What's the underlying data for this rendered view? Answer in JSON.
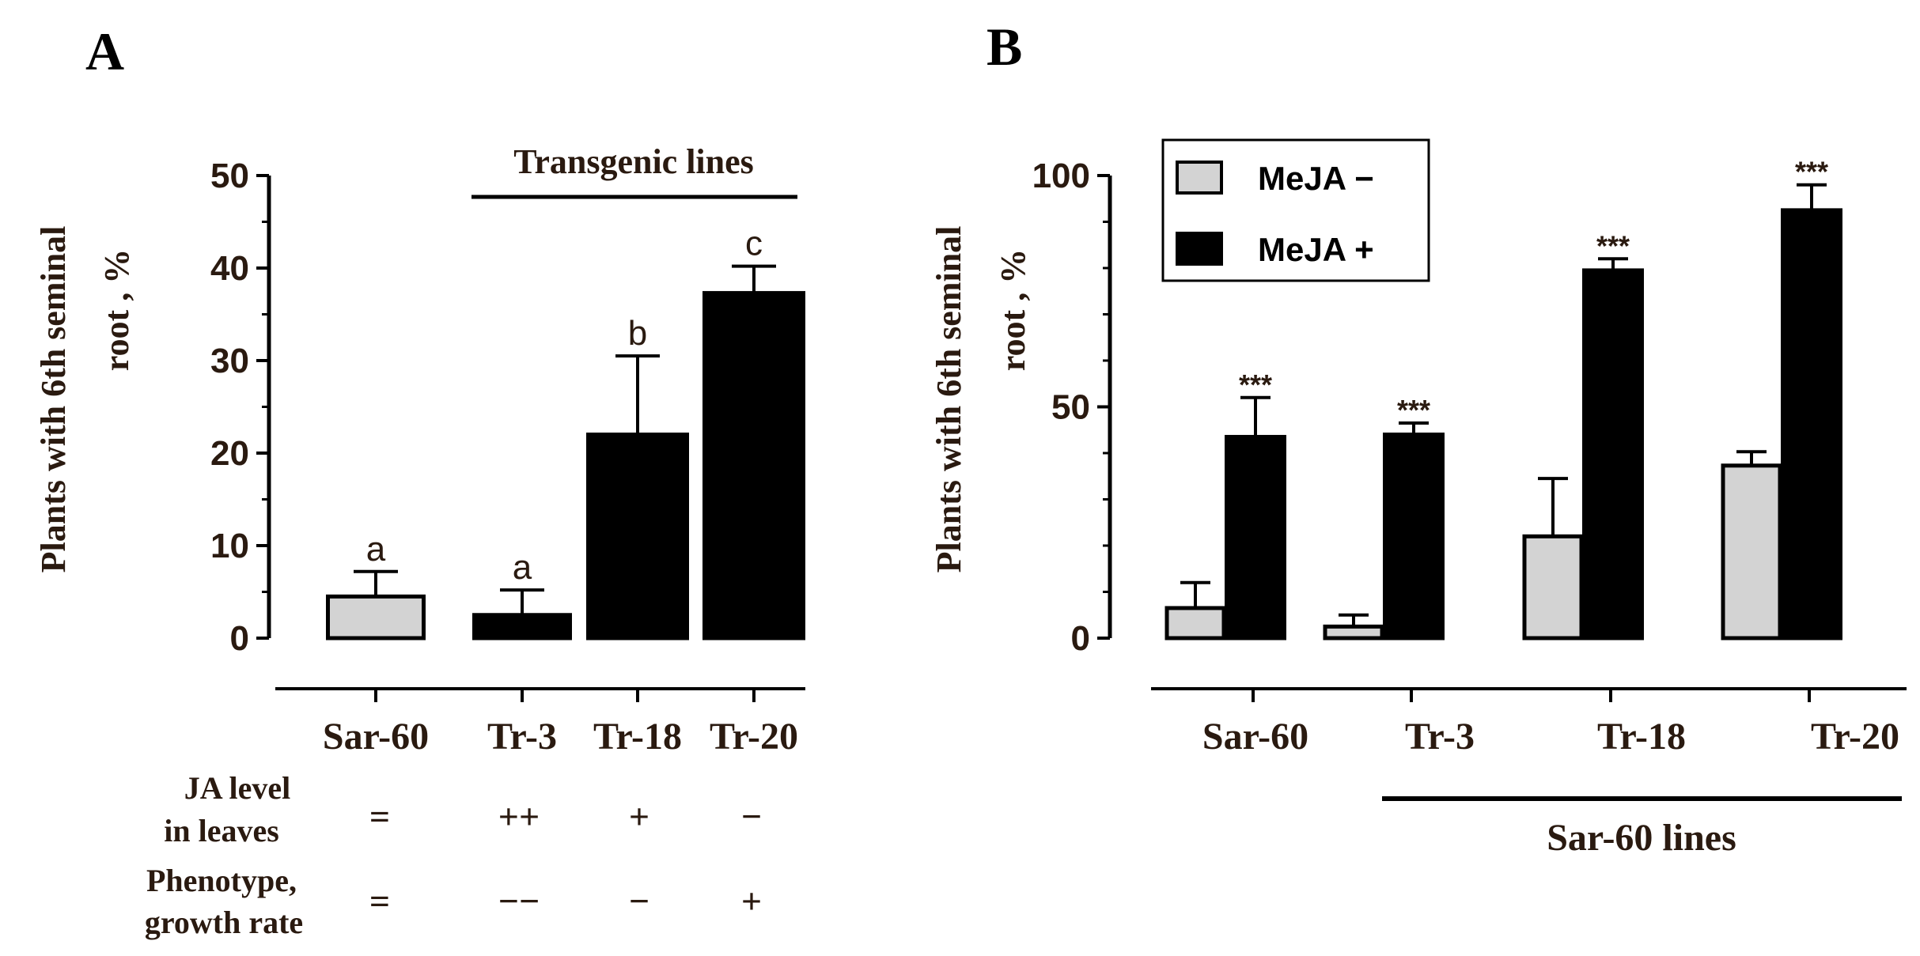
{
  "colors": {
    "light_bar": "#d3d3d3",
    "dark_bar": "#000000",
    "ink": "#000000",
    "text": "#2a1a10"
  },
  "chart_data": [
    {
      "panel_label": "A",
      "type": "bar",
      "ylabel_line1": "Plants with 6th seminal",
      "ylabel_line2": "root , %",
      "ylim": [
        0,
        50
      ],
      "yticks": [
        "0",
        "10",
        "20",
        "30",
        "40",
        "50"
      ],
      "categories": [
        "Sar-60",
        "Tr-3",
        "Tr-18",
        "Tr-20"
      ],
      "values": [
        4.5,
        2.5,
        22,
        37.3
      ],
      "errors": [
        2.7,
        2.7,
        8.5,
        2.9
      ],
      "bar_styles": [
        "light",
        "dark",
        "dark",
        "dark"
      ],
      "significance_letters": [
        "a",
        "a",
        "b",
        "c"
      ],
      "group_label": "Transgenic lines",
      "rows": [
        {
          "label_line1": "JA level",
          "label_line2": "in leaves",
          "values": [
            "=",
            "++",
            "+",
            "−"
          ]
        },
        {
          "label_line1": "Phenotype,",
          "label_line2": "growth rate",
          "values": [
            "=",
            "−−",
            "−",
            "+"
          ]
        }
      ]
    },
    {
      "panel_label": "B",
      "type": "bar",
      "ylabel_line1": "Plants with 6th seminal",
      "ylabel_line2": "root , %",
      "ylim": [
        0,
        100
      ],
      "yticks": [
        "0",
        "50",
        "100"
      ],
      "categories": [
        "Sar-60",
        "Tr-3",
        "Tr-18",
        "Tr-20"
      ],
      "series": [
        {
          "name": "MeJA −",
          "style": "light",
          "values": [
            6.5,
            2.5,
            22,
            37.3
          ],
          "errors": [
            5.5,
            2.5,
            12.5,
            3.0
          ]
        },
        {
          "name": "MeJA +",
          "style": "dark",
          "values": [
            43.5,
            44,
            79.5,
            92.5
          ],
          "errors": [
            8.5,
            2.5,
            2.5,
            5.5
          ]
        }
      ],
      "annotations": [
        "***",
        "***",
        "***",
        "***"
      ],
      "group_label": "Sar-60 lines"
    }
  ]
}
